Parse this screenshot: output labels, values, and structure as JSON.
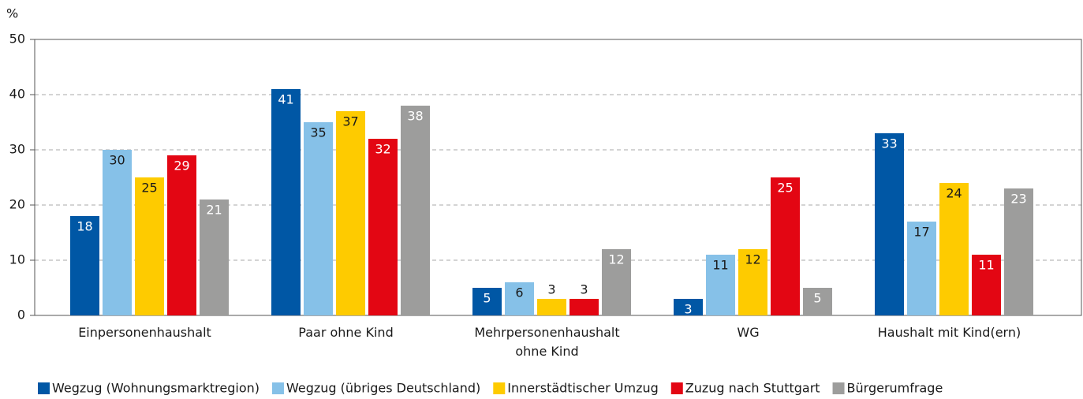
{
  "chart_data": {
    "type": "bar",
    "y_unit_label": "%",
    "categories": [
      "Einpersonenhaushalt",
      "Paar ohne Kind",
      "Mehrpersonenhaushalt\nohne Kind",
      "WG",
      "Haushalt mit Kind(ern)"
    ],
    "series": [
      {
        "name": "Wegzug (Wohnungsmarktregion)",
        "color": "#0057a5",
        "values": [
          18,
          41,
          5,
          3,
          33
        ]
      },
      {
        "name": "Wegzug (übriges Deutschland)",
        "color": "#86c1e8",
        "values": [
          30,
          35,
          6,
          11,
          17
        ]
      },
      {
        "name": "Innerstädtischer Umzug",
        "color": "#fecb00",
        "values": [
          25,
          37,
          3,
          12,
          24
        ]
      },
      {
        "name": "Zuzug nach Stuttgart",
        "color": "#e30613",
        "values": [
          29,
          32,
          3,
          25,
          11
        ]
      },
      {
        "name": "Bürgerumfrage",
        "color": "#9d9d9c",
        "values": [
          21,
          38,
          12,
          5,
          23
        ]
      }
    ],
    "ylim": [
      0,
      50
    ],
    "yticks": [
      0,
      10,
      20,
      30,
      40,
      50
    ],
    "grid": true,
    "legend": "bottom"
  }
}
